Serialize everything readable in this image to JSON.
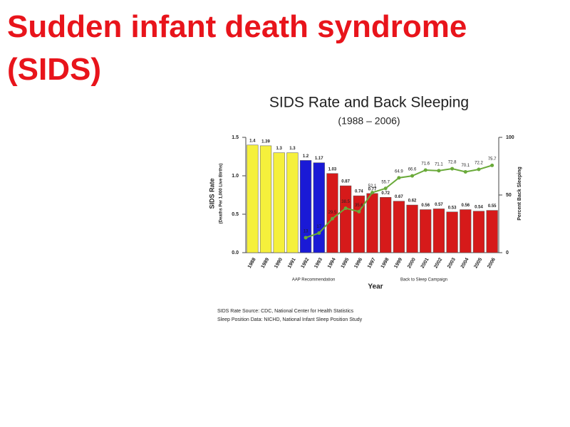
{
  "title": "Sudden infant death syndrome (SIDS)",
  "chart_data": {
    "type": "bar",
    "title": "SIDS Rate and Back Sleeping",
    "subtitle": "(1988 – 2006)",
    "xlabel": "Year",
    "ylabel": "SIDS Rate",
    "ylabel_sub": "(Deaths Per 1,000 Live Births)",
    "y2label": "Percent Back Sleeping",
    "categories": [
      "1988",
      "1989",
      "1990",
      "1991",
      "1992",
      "1993",
      "1994",
      "1995",
      "1996",
      "1997",
      "1998",
      "1999",
      "2000",
      "2001",
      "2002",
      "2003",
      "2004",
      "2005",
      "2006"
    ],
    "series": [
      {
        "type": "bar",
        "colors": [
          "#f5f03c",
          "#f5f03c",
          "#f5f03c",
          "#f5f03c",
          "#1a1ad6",
          "#1a1ad6",
          "#d61a1a",
          "#d61a1a",
          "#d61a1a",
          "#d61a1a",
          "#d61a1a",
          "#d61a1a",
          "#d61a1a",
          "#d61a1a",
          "#d61a1a",
          "#d61a1a",
          "#d61a1a",
          "#d61a1a",
          "#d61a1a"
        ],
        "values": [
          1.4,
          1.39,
          1.3,
          1.3,
          1.2,
          1.17,
          1.03,
          0.87,
          0.74,
          0.77,
          0.72,
          0.67,
          0.62,
          0.56,
          0.57,
          0.53,
          0.56,
          0.54,
          0.55
        ]
      },
      {
        "type": "line",
        "axis": "y2",
        "color": "#6aaa3a",
        "values": [
          null,
          null,
          null,
          null,
          13,
          17,
          29.5,
          38.5,
          35.6,
          52.1,
          55.7,
          64.9,
          66.6,
          71.6,
          71.1,
          72.8,
          70.1,
          72.2,
          75.7
        ]
      }
    ],
    "ylim": [
      0,
      1.5
    ],
    "yticks": [
      {
        "value": 0,
        "label": "0.0"
      },
      0.5,
      {
        "value": 1,
        "label": "1.0"
      },
      1.5
    ],
    "y2lim": [
      0,
      100
    ],
    "y2ticks": [
      0,
      50,
      100
    ],
    "annotations": [
      {
        "text": "AAP Recommendation",
        "color": "#1a1ad6"
      },
      {
        "text": "Back to Sleep Campaign",
        "color": "#d61a1a"
      }
    ],
    "source": [
      "SIDS Rate Source:  CDC, National Center for Health Statistics",
      "Sleep Position Data:  NICHD, National Infant Sleep Position Study"
    ]
  }
}
